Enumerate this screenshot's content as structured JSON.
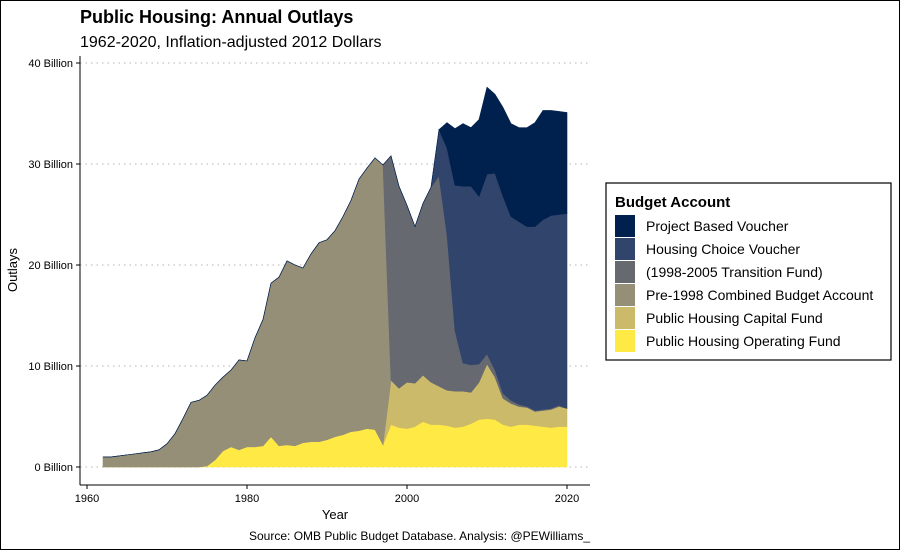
{
  "chart_data": {
    "type": "area",
    "stacked": true,
    "title": "Public Housing: Annual Outlays",
    "subtitle": "1962-2020, Inflation-adjusted 2012 Dollars",
    "xlabel": "Year",
    "ylabel": "Outlays",
    "caption": "Source: OMB Public Budget Database. Analysis: @PEWilliams_",
    "xlim": [
      1960,
      2023
    ],
    "ylim": [
      0,
      40
    ],
    "x_ticks": [
      1960,
      1980,
      2000,
      2020
    ],
    "x_tick_labels": [
      "1960",
      "1980",
      "2000",
      "2020"
    ],
    "y_ticks": [
      0,
      10,
      20,
      30,
      40
    ],
    "y_tick_labels": [
      "0 Billion",
      "10 Billion",
      "20 Billion",
      "30 Billion",
      "40 Billion"
    ],
    "grid": "horizontal-dotted",
    "legend_title": "Budget Account",
    "legend_position": "right",
    "x": [
      1962,
      1963,
      1964,
      1965,
      1966,
      1967,
      1968,
      1969,
      1970,
      1971,
      1972,
      1973,
      1974,
      1975,
      1976,
      1977,
      1978,
      1979,
      1980,
      1981,
      1982,
      1983,
      1984,
      1985,
      1986,
      1987,
      1988,
      1989,
      1990,
      1991,
      1992,
      1993,
      1994,
      1995,
      1996,
      1997,
      1998,
      1999,
      2000,
      2001,
      2002,
      2003,
      2004,
      2005,
      2006,
      2007,
      2008,
      2009,
      2010,
      2011,
      2012,
      2013,
      2014,
      2015,
      2016,
      2017,
      2018,
      2019,
      2020
    ],
    "series": [
      {
        "name": "Public Housing Operating Fund",
        "color": "#ffe945",
        "values": [
          0,
          0,
          0,
          0,
          0,
          0,
          0,
          0,
          0,
          0,
          0,
          0,
          0,
          0.1,
          0.7,
          1.6,
          2.0,
          1.7,
          2.0,
          2.0,
          2.1,
          3.0,
          2.1,
          2.2,
          2.1,
          2.4,
          2.5,
          2.5,
          2.7,
          3.0,
          3.2,
          3.5,
          3.6,
          3.8,
          3.7,
          2.2,
          4.2,
          3.9,
          3.8,
          4.0,
          4.5,
          4.2,
          4.2,
          4.1,
          3.9,
          4.0,
          4.3,
          4.7,
          4.8,
          4.7,
          4.2,
          4.0,
          4.2,
          4.2,
          4.1,
          4.0,
          3.9,
          4.0,
          4.0
        ]
      },
      {
        "name": "Public Housing Capital Fund",
        "color": "#cbba69",
        "values": [
          0,
          0,
          0,
          0,
          0,
          0,
          0,
          0,
          0,
          0,
          0,
          0,
          0,
          0,
          0,
          0,
          0,
          0,
          0,
          0,
          0,
          0,
          0,
          0,
          0,
          0,
          0,
          0,
          0,
          0,
          0,
          0,
          0,
          0,
          0,
          0,
          4.4,
          3.9,
          4.6,
          4.3,
          4.6,
          4.2,
          3.8,
          3.5,
          3.6,
          3.5,
          3.1,
          3.7,
          5.4,
          4.2,
          2.6,
          2.3,
          1.8,
          1.7,
          1.4,
          1.6,
          1.8,
          2.0,
          1.8
        ]
      },
      {
        "name": "Pre-1998 Combined Budget Account",
        "color": "#958f78",
        "values": [
          1.0,
          1.0,
          1.1,
          1.2,
          1.3,
          1.4,
          1.5,
          1.7,
          2.3,
          3.3,
          4.8,
          6.4,
          6.6,
          7.0,
          7.4,
          7.3,
          7.6,
          8.9,
          8.5,
          10.8,
          12.5,
          15.2,
          16.7,
          18.2,
          17.9,
          17.3,
          18.6,
          19.7,
          19.8,
          20.4,
          21.6,
          22.9,
          24.9,
          25.8,
          26.9,
          27.7,
          0,
          0,
          0,
          0,
          0,
          0,
          0,
          0,
          0,
          0,
          0,
          0,
          0,
          0,
          0,
          0,
          0,
          0,
          0,
          0,
          0,
          0,
          0
        ]
      },
      {
        "name": "(1998-2005 Transition Fund)",
        "color": "#666970",
        "values": [
          0,
          0,
          0,
          0,
          0,
          0,
          0,
          0,
          0,
          0,
          0,
          0,
          0,
          0,
          0,
          0,
          0,
          0,
          0,
          0,
          0,
          0,
          0,
          0,
          0,
          0,
          0,
          0,
          0,
          0,
          0,
          0,
          0,
          0,
          0,
          0,
          22.2,
          20.0,
          17.5,
          15.5,
          17.0,
          19.3,
          20.8,
          15.4,
          6.0,
          2.8,
          2.7,
          1.8,
          1.0,
          0.7,
          0.5,
          0.3,
          0.2,
          0.1,
          0.1,
          0.1,
          0.1,
          0.1,
          0
        ]
      },
      {
        "name": "Housing Choice Voucher",
        "color": "#31446b",
        "values": [
          0,
          0,
          0,
          0,
          0,
          0,
          0,
          0,
          0,
          0,
          0,
          0,
          0,
          0,
          0,
          0,
          0,
          0,
          0,
          0,
          0,
          0,
          0,
          0,
          0,
          0,
          0,
          0,
          0,
          0,
          0,
          0,
          0,
          0,
          0,
          0,
          0,
          0,
          0,
          0,
          0,
          0,
          4.6,
          8.6,
          14.4,
          17.5,
          17.7,
          16.6,
          17.8,
          19.5,
          19.5,
          18.2,
          18.1,
          17.8,
          18.2,
          18.8,
          19.1,
          18.9,
          19.3
        ]
      },
      {
        "name": "Project Based Voucher",
        "color": "#00204d",
        "values": [
          0,
          0,
          0,
          0,
          0,
          0,
          0,
          0,
          0,
          0,
          0,
          0,
          0,
          0,
          0,
          0,
          0,
          0,
          0,
          0,
          0,
          0,
          0,
          0,
          0,
          0,
          0,
          0,
          0,
          0,
          0,
          0,
          0,
          0,
          0,
          0,
          0,
          0,
          0,
          0,
          0,
          0,
          0,
          2.5,
          5.6,
          6.2,
          5.8,
          7.6,
          8.6,
          7.8,
          8.8,
          9.2,
          9.3,
          9.8,
          10.3,
          10.8,
          10.4,
          10.2,
          10.0
        ]
      }
    ]
  }
}
